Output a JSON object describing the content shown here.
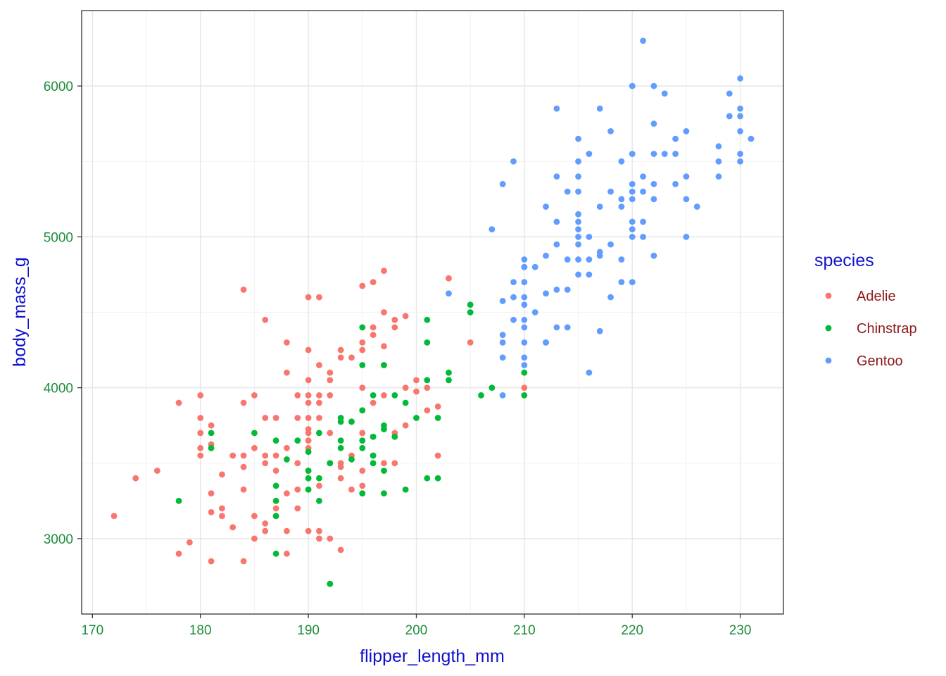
{
  "chart_data": {
    "type": "scatter",
    "xlabel": "flipper_length_mm",
    "ylabel": "body_mass_g",
    "xlim": [
      169,
      234
    ],
    "ylim": [
      2500,
      6500
    ],
    "x_ticks": [
      170,
      180,
      190,
      200,
      210,
      220,
      230
    ],
    "y_ticks": [
      3000,
      4000,
      5000,
      6000
    ],
    "grid": true,
    "legend": {
      "title": "species",
      "position": "right"
    },
    "colors": {
      "tick_x": "#1e8c3c",
      "tick_y": "#1e8c3c",
      "axis_title": "#1010cc",
      "legend_title": "#1010cc",
      "legend_label": "#8b1a1a"
    },
    "series": [
      {
        "name": "Adelie",
        "color": "#F8766D",
        "points": [
          [
            172,
            3150
          ],
          [
            174,
            3400
          ],
          [
            176,
            3450
          ],
          [
            178,
            3900
          ],
          [
            178,
            2900
          ],
          [
            179,
            2975
          ],
          [
            180,
            3950
          ],
          [
            180,
            3800
          ],
          [
            180,
            3700
          ],
          [
            180,
            3600
          ],
          [
            180,
            3550
          ],
          [
            181,
            3750
          ],
          [
            181,
            3625
          ],
          [
            181,
            3300
          ],
          [
            181,
            3175
          ],
          [
            181,
            2850
          ],
          [
            182,
            3425
          ],
          [
            182,
            3200
          ],
          [
            182,
            3150
          ],
          [
            183,
            3550
          ],
          [
            183,
            3075
          ],
          [
            184,
            4650
          ],
          [
            184,
            3900
          ],
          [
            184,
            3550
          ],
          [
            184,
            3475
          ],
          [
            184,
            3325
          ],
          [
            184,
            2850
          ],
          [
            185,
            3950
          ],
          [
            185,
            3600
          ],
          [
            185,
            3150
          ],
          [
            185,
            3000
          ],
          [
            186,
            4450
          ],
          [
            186,
            3800
          ],
          [
            186,
            3550
          ],
          [
            186,
            3500
          ],
          [
            186,
            3100
          ],
          [
            186,
            3050
          ],
          [
            187,
            3800
          ],
          [
            187,
            3550
          ],
          [
            187,
            3450
          ],
          [
            187,
            3250
          ],
          [
            187,
            3150
          ],
          [
            187,
            3200
          ],
          [
            188,
            4300
          ],
          [
            188,
            4100
          ],
          [
            188,
            3600
          ],
          [
            188,
            3300
          ],
          [
            188,
            3050
          ],
          [
            188,
            2900
          ],
          [
            189,
            3950
          ],
          [
            189,
            3800
          ],
          [
            189,
            3500
          ],
          [
            189,
            3325
          ],
          [
            189,
            3200
          ],
          [
            190,
            4600
          ],
          [
            190,
            4250
          ],
          [
            190,
            4050
          ],
          [
            190,
            3950
          ],
          [
            190,
            3900
          ],
          [
            190,
            3800
          ],
          [
            190,
            3725
          ],
          [
            190,
            3700
          ],
          [
            190,
            3650
          ],
          [
            190,
            3600
          ],
          [
            190,
            3450
          ],
          [
            190,
            3050
          ],
          [
            191,
            4600
          ],
          [
            191,
            4150
          ],
          [
            191,
            3950
          ],
          [
            191,
            3900
          ],
          [
            191,
            3800
          ],
          [
            191,
            3050
          ],
          [
            191,
            3350
          ],
          [
            191,
            3000
          ],
          [
            192,
            4100
          ],
          [
            192,
            4050
          ],
          [
            192,
            3950
          ],
          [
            192,
            3700
          ],
          [
            192,
            3500
          ],
          [
            192,
            3000
          ],
          [
            193,
            4250
          ],
          [
            193,
            4200
          ],
          [
            193,
            3500
          ],
          [
            193,
            3475
          ],
          [
            193,
            3400
          ],
          [
            193,
            2925
          ],
          [
            194,
            4200
          ],
          [
            194,
            3775
          ],
          [
            194,
            3550
          ],
          [
            194,
            3325
          ],
          [
            195,
            4675
          ],
          [
            195,
            4300
          ],
          [
            195,
            4250
          ],
          [
            195,
            4000
          ],
          [
            195,
            3850
          ],
          [
            195,
            3450
          ],
          [
            195,
            3350
          ],
          [
            195,
            3300
          ],
          [
            195,
            3700
          ],
          [
            196,
            4700
          ],
          [
            196,
            4400
          ],
          [
            196,
            4350
          ],
          [
            196,
            3900
          ],
          [
            196,
            3550
          ],
          [
            196,
            3675
          ],
          [
            197,
            4775
          ],
          [
            197,
            4500
          ],
          [
            197,
            4275
          ],
          [
            197,
            4150
          ],
          [
            197,
            3950
          ],
          [
            197,
            3500
          ],
          [
            198,
            4450
          ],
          [
            198,
            4400
          ],
          [
            198,
            3700
          ],
          [
            198,
            3500
          ],
          [
            199,
            4475
          ],
          [
            199,
            4000
          ],
          [
            199,
            3750
          ],
          [
            200,
            4050
          ],
          [
            200,
            3975
          ],
          [
            201,
            4000
          ],
          [
            201,
            3850
          ],
          [
            202,
            3875
          ],
          [
            202,
            3550
          ],
          [
            203,
            4725
          ],
          [
            205,
            4300
          ],
          [
            210,
            4000
          ]
        ]
      },
      {
        "name": "Chinstrap",
        "color": "#00BA38",
        "points": [
          [
            178,
            3250
          ],
          [
            181,
            3700
          ],
          [
            181,
            3600
          ],
          [
            185,
            3700
          ],
          [
            187,
            3650
          ],
          [
            187,
            3350
          ],
          [
            187,
            3250
          ],
          [
            187,
            3150
          ],
          [
            187,
            2900
          ],
          [
            188,
            3525
          ],
          [
            189,
            3650
          ],
          [
            190,
            3575
          ],
          [
            190,
            3450
          ],
          [
            190,
            3400
          ],
          [
            190,
            3325
          ],
          [
            191,
            3700
          ],
          [
            191,
            3400
          ],
          [
            191,
            3250
          ],
          [
            192,
            3500
          ],
          [
            192,
            2700
          ],
          [
            193,
            3800
          ],
          [
            193,
            3775
          ],
          [
            193,
            3650
          ],
          [
            193,
            3600
          ],
          [
            194,
            3775
          ],
          [
            194,
            3525
          ],
          [
            195,
            4400
          ],
          [
            195,
            4150
          ],
          [
            195,
            3850
          ],
          [
            195,
            3650
          ],
          [
            195,
            3600
          ],
          [
            195,
            3300
          ],
          [
            196,
            3950
          ],
          [
            196,
            3675
          ],
          [
            196,
            3550
          ],
          [
            196,
            3500
          ],
          [
            197,
            4150
          ],
          [
            197,
            3750
          ],
          [
            197,
            3725
          ],
          [
            197,
            3450
          ],
          [
            197,
            3300
          ],
          [
            198,
            3950
          ],
          [
            198,
            3675
          ],
          [
            199,
            3900
          ],
          [
            199,
            3325
          ],
          [
            200,
            3800
          ],
          [
            201,
            4450
          ],
          [
            201,
            4300
          ],
          [
            201,
            4050
          ],
          [
            201,
            3400
          ],
          [
            202,
            3800
          ],
          [
            202,
            3400
          ],
          [
            203,
            4100
          ],
          [
            203,
            4050
          ],
          [
            205,
            4550
          ],
          [
            205,
            4500
          ],
          [
            206,
            3950
          ],
          [
            207,
            4000
          ],
          [
            210,
            4800
          ],
          [
            210,
            4100
          ],
          [
            210,
            3950
          ],
          [
            212,
            4300
          ]
        ]
      },
      {
        "name": "Gentoo",
        "color": "#619CFF",
        "points": [
          [
            203,
            4625
          ],
          [
            207,
            5050
          ],
          [
            208,
            5350
          ],
          [
            208,
            4575
          ],
          [
            208,
            4350
          ],
          [
            208,
            4300
          ],
          [
            208,
            4200
          ],
          [
            208,
            3950
          ],
          [
            209,
            5500
          ],
          [
            209,
            4700
          ],
          [
            209,
            4600
          ],
          [
            209,
            4450
          ],
          [
            210,
            4850
          ],
          [
            210,
            4800
          ],
          [
            210,
            4700
          ],
          [
            210,
            4600
          ],
          [
            210,
            4550
          ],
          [
            210,
            4450
          ],
          [
            210,
            4400
          ],
          [
            210,
            4300
          ],
          [
            210,
            4200
          ],
          [
            210,
            4150
          ],
          [
            211,
            4800
          ],
          [
            211,
            4500
          ],
          [
            212,
            5200
          ],
          [
            212,
            4875
          ],
          [
            212,
            4625
          ],
          [
            212,
            4300
          ],
          [
            213,
            5850
          ],
          [
            213,
            5400
          ],
          [
            213,
            5100
          ],
          [
            213,
            4950
          ],
          [
            213,
            4650
          ],
          [
            213,
            4400
          ],
          [
            214,
            5300
          ],
          [
            214,
            4850
          ],
          [
            214,
            4650
          ],
          [
            214,
            4400
          ],
          [
            215,
            5650
          ],
          [
            215,
            5500
          ],
          [
            215,
            5400
          ],
          [
            215,
            5300
          ],
          [
            215,
            5150
          ],
          [
            215,
            5100
          ],
          [
            215,
            5050
          ],
          [
            215,
            5000
          ],
          [
            215,
            4950
          ],
          [
            215,
            4750
          ],
          [
            215,
            4850
          ],
          [
            216,
            5550
          ],
          [
            216,
            5000
          ],
          [
            216,
            4850
          ],
          [
            216,
            4750
          ],
          [
            216,
            4100
          ],
          [
            217,
            5850
          ],
          [
            217,
            5200
          ],
          [
            217,
            4900
          ],
          [
            217,
            4875
          ],
          [
            217,
            4375
          ],
          [
            218,
            5700
          ],
          [
            218,
            5300
          ],
          [
            218,
            4950
          ],
          [
            218,
            4600
          ],
          [
            219,
            5500
          ],
          [
            219,
            5250
          ],
          [
            219,
            5200
          ],
          [
            219,
            4850
          ],
          [
            219,
            4700
          ],
          [
            220,
            6000
          ],
          [
            220,
            5550
          ],
          [
            220,
            5350
          ],
          [
            220,
            5300
          ],
          [
            220,
            5250
          ],
          [
            220,
            5100
          ],
          [
            220,
            5050
          ],
          [
            220,
            5000
          ],
          [
            220,
            4700
          ],
          [
            221,
            6300
          ],
          [
            221,
            5400
          ],
          [
            221,
            5300
          ],
          [
            221,
            5100
          ],
          [
            221,
            5000
          ],
          [
            222,
            6000
          ],
          [
            222,
            5750
          ],
          [
            222,
            5550
          ],
          [
            222,
            5350
          ],
          [
            222,
            5250
          ],
          [
            222,
            4875
          ],
          [
            223,
            5950
          ],
          [
            223,
            5550
          ],
          [
            224,
            5650
          ],
          [
            224,
            5550
          ],
          [
            224,
            5350
          ],
          [
            225,
            5700
          ],
          [
            225,
            5400
          ],
          [
            225,
            5250
          ],
          [
            225,
            5000
          ],
          [
            226,
            5200
          ],
          [
            228,
            5600
          ],
          [
            228,
            5500
          ],
          [
            228,
            5400
          ],
          [
            229,
            5950
          ],
          [
            229,
            5800
          ],
          [
            230,
            6050
          ],
          [
            230,
            5850
          ],
          [
            230,
            5800
          ],
          [
            230,
            5700
          ],
          [
            230,
            5550
          ],
          [
            230,
            5500
          ],
          [
            231,
            5650
          ]
        ]
      }
    ]
  }
}
